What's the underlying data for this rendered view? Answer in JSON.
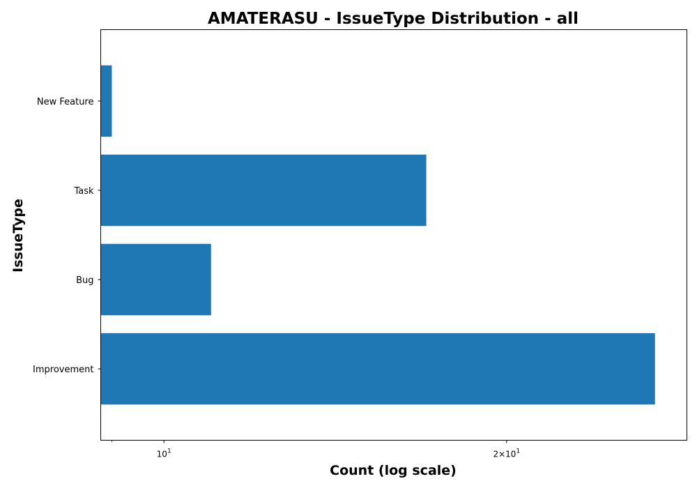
{
  "chart_data": {
    "type": "bar",
    "orientation": "horizontal",
    "title": "AMATERASU - IssueType Distribution - all",
    "xlabel": "Count (log scale)",
    "ylabel": "IssueType",
    "x_scale": "log",
    "xlim": [
      8.8,
      28.8
    ],
    "categories": [
      "Improvement",
      "Bug",
      "Task",
      "New Feature"
    ],
    "values": [
      27,
      11,
      17,
      9
    ],
    "x_ticks": [
      {
        "value": 10,
        "base": "10",
        "exp": "1",
        "prefix": ""
      },
      {
        "value": 20,
        "base": "10",
        "exp": "1",
        "prefix": "2×"
      }
    ],
    "minor_ticks": [
      9
    ],
    "bar_color": "#1f77b4",
    "grid": false,
    "legend": "none"
  }
}
